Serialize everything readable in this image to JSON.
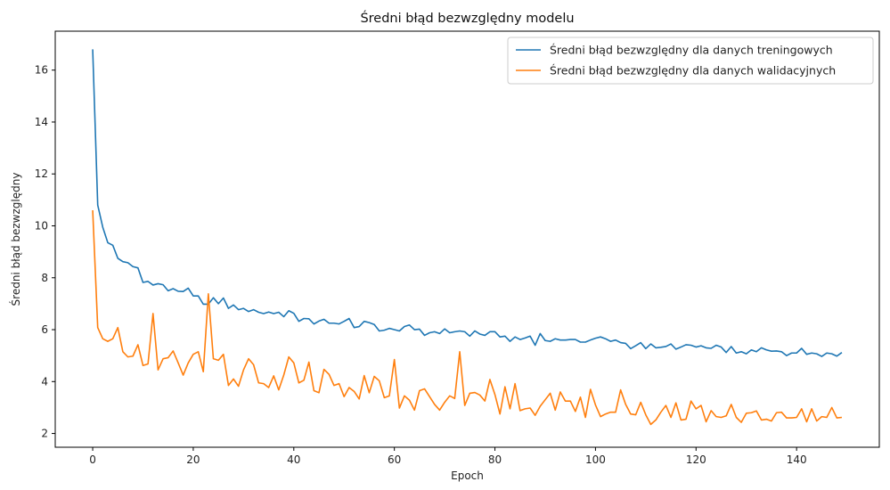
{
  "chart_data": {
    "type": "line",
    "title": "Średni błąd bezwzględny modelu",
    "xlabel": "Epoch",
    "ylabel": "Średni błąd bezwzględny",
    "xlim": [
      -7.45,
      156.45
    ],
    "ylim": [
      1.47,
      17.5
    ],
    "xticks": [
      0,
      20,
      40,
      60,
      80,
      100,
      120,
      140
    ],
    "yticks": [
      2,
      4,
      6,
      8,
      10,
      12,
      14,
      16
    ],
    "grid": false,
    "legend_position": "top-right",
    "series": [
      {
        "name": "Średni błąd bezwzględny dla danych treningowych",
        "color": "#1f77b4",
        "values": [
          16.8,
          10.8,
          9.95,
          9.35,
          9.25,
          8.75,
          8.62,
          8.58,
          8.43,
          8.38,
          7.82,
          7.86,
          7.72,
          7.77,
          7.73,
          7.5,
          7.58,
          7.48,
          7.47,
          7.6,
          7.3,
          7.3,
          6.98,
          6.98,
          7.23,
          7.0,
          7.22,
          6.82,
          6.95,
          6.77,
          6.82,
          6.7,
          6.77,
          6.67,
          6.62,
          6.68,
          6.62,
          6.67,
          6.5,
          6.73,
          6.63,
          6.32,
          6.43,
          6.42,
          6.22,
          6.33,
          6.4,
          6.25,
          6.25,
          6.22,
          6.32,
          6.43,
          6.08,
          6.12,
          6.32,
          6.27,
          6.2,
          5.95,
          5.98,
          6.05,
          6.0,
          5.95,
          6.12,
          6.18,
          6.0,
          6.02,
          5.78,
          5.88,
          5.92,
          5.85,
          6.03,
          5.88,
          5.92,
          5.95,
          5.92,
          5.75,
          5.95,
          5.83,
          5.78,
          5.92,
          5.92,
          5.72,
          5.75,
          5.55,
          5.72,
          5.62,
          5.68,
          5.75,
          5.4,
          5.85,
          5.58,
          5.55,
          5.65,
          5.6,
          5.6,
          5.62,
          5.62,
          5.52,
          5.52,
          5.6,
          5.67,
          5.72,
          5.65,
          5.55,
          5.6,
          5.5,
          5.47,
          5.27,
          5.38,
          5.5,
          5.27,
          5.45,
          5.3,
          5.32,
          5.35,
          5.45,
          5.25,
          5.33,
          5.42,
          5.4,
          5.33,
          5.38,
          5.3,
          5.28,
          5.4,
          5.33,
          5.12,
          5.35,
          5.1,
          5.15,
          5.07,
          5.22,
          5.15,
          5.3,
          5.22,
          5.17,
          5.18,
          5.15,
          5.0,
          5.1,
          5.1,
          5.28,
          5.05,
          5.1,
          5.07,
          4.97,
          5.1,
          5.07,
          4.98,
          5.12
        ]
      },
      {
        "name": "Średni błąd bezwzględny dla danych walidacyjnych",
        "color": "#ff7f0e",
        "values": [
          10.6,
          6.08,
          5.65,
          5.55,
          5.65,
          6.08,
          5.15,
          4.95,
          4.98,
          5.42,
          4.62,
          4.68,
          6.62,
          4.45,
          4.88,
          4.92,
          5.18,
          4.72,
          4.25,
          4.72,
          5.05,
          5.15,
          4.38,
          7.38,
          4.88,
          4.82,
          5.05,
          3.85,
          4.1,
          3.82,
          4.45,
          4.88,
          4.65,
          3.95,
          3.92,
          3.77,
          4.22,
          3.68,
          4.25,
          4.95,
          4.72,
          3.95,
          4.05,
          4.75,
          3.65,
          3.57,
          4.47,
          4.28,
          3.85,
          3.92,
          3.42,
          3.77,
          3.62,
          3.33,
          4.23,
          3.57,
          4.2,
          4.03,
          3.38,
          3.45,
          4.85,
          2.98,
          3.45,
          3.28,
          2.9,
          3.65,
          3.72,
          3.42,
          3.12,
          2.9,
          3.2,
          3.45,
          3.35,
          5.15,
          3.08,
          3.55,
          3.58,
          3.48,
          3.25,
          4.08,
          3.5,
          2.75,
          3.8,
          2.95,
          3.92,
          2.88,
          2.95,
          2.98,
          2.7,
          3.05,
          3.3,
          3.55,
          2.9,
          3.6,
          3.25,
          3.25,
          2.85,
          3.4,
          2.62,
          3.7,
          3.1,
          2.65,
          2.75,
          2.82,
          2.82,
          3.68,
          3.12,
          2.75,
          2.72,
          3.2,
          2.72,
          2.35,
          2.52,
          2.82,
          3.08,
          2.62,
          3.18,
          2.52,
          2.55,
          3.25,
          2.95,
          3.08,
          2.45,
          2.88,
          2.65,
          2.62,
          2.68,
          3.12,
          2.62,
          2.43,
          2.78,
          2.8,
          2.87,
          2.52,
          2.55,
          2.48,
          2.8,
          2.82,
          2.6,
          2.6,
          2.62,
          2.95,
          2.45,
          2.95,
          2.48,
          2.65,
          2.62,
          3.0,
          2.6,
          2.62
        ]
      }
    ]
  }
}
